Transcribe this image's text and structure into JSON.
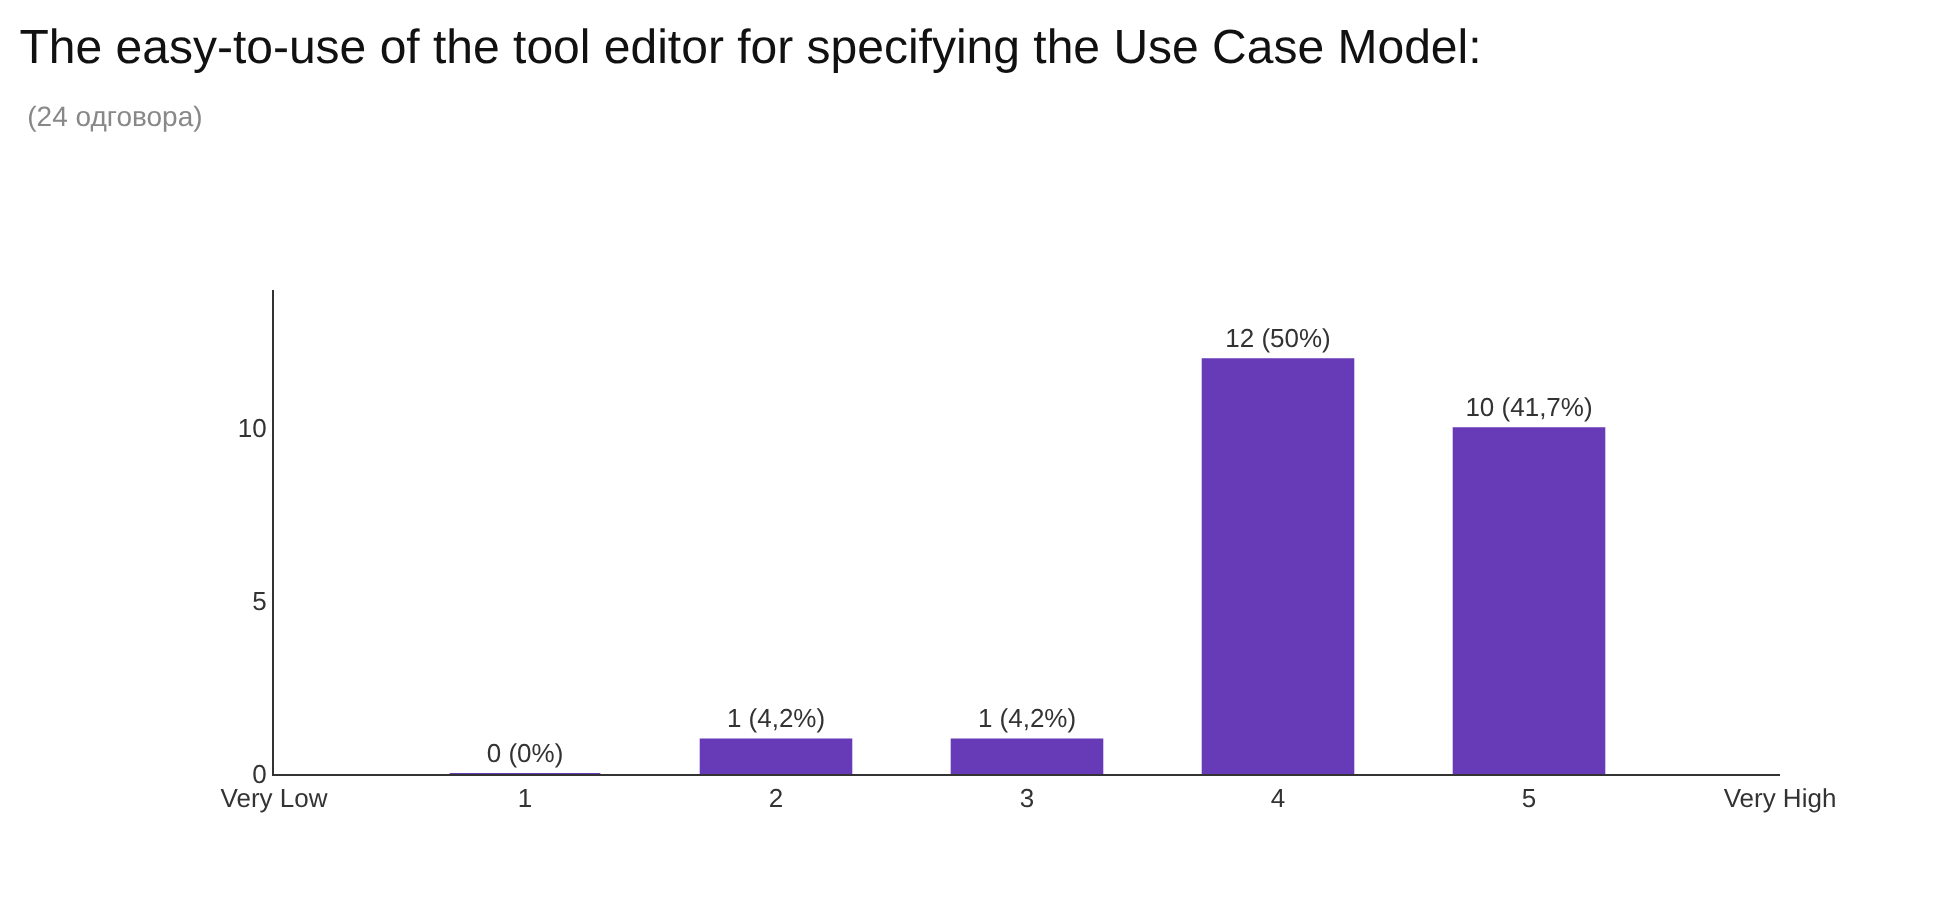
{
  "chart_data": {
    "type": "bar",
    "title": "The easy-to-use of the tool editor for specifying the Use Case Model:",
    "subtitle": "(24 одговора)",
    "x": [
      1,
      2,
      3,
      4,
      5
    ],
    "values": [
      0,
      1,
      1,
      12,
      10
    ],
    "color": "#673ab7",
    "value_labels": [
      "0 (0%)",
      "1 (4,2%)",
      "1 (4,2%)",
      "12 (50%)",
      "10 (41,7%)"
    ],
    "xlim": [
      0,
      6
    ],
    "xticks": [
      {
        "value": 0,
        "label": "Very Low"
      },
      1,
      2,
      3,
      4,
      5,
      {
        "value": 6,
        "label": "Very High"
      }
    ],
    "ylim": [
      0,
      14
    ],
    "yticks": [
      0,
      5,
      10
    ]
  }
}
